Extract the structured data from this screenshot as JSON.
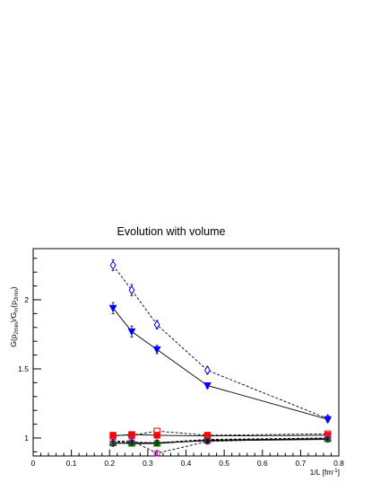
{
  "chart_data": {
    "type": "scatter",
    "title": "Evolution with volume",
    "xlabel": "1/L [fm",
    "xlabel_sup": "-1",
    "xlabel_close": "]",
    "ylabel": "G(p",
    "ylabel_sub1": "2min",
    "ylabel_mid": ")/G",
    "ylabel_sub2": "m",
    "ylabel_mid2": "(p",
    "ylabel_sub3": "2min",
    "ylabel_end": ")",
    "xlim": [
      0,
      0.8
    ],
    "ylim": [
      0.87,
      2.37
    ],
    "xticks": [
      0,
      0.1,
      0.2,
      0.3,
      0.4,
      0.5,
      0.6,
      0.7,
      0.8
    ],
    "xtick_labels": [
      "0",
      "0.1",
      "0.2",
      "0.3",
      "0.4",
      "0.5",
      "0.6",
      "0.7",
      "0.8"
    ],
    "yticks": [
      1,
      1.5,
      2
    ],
    "ytick_labels": [
      "1",
      "1.5",
      "2"
    ],
    "grid": false,
    "series": [
      {
        "marker": "open-diamond",
        "color": "#0000ff",
        "line": "dashed",
        "x": [
          0.209,
          0.258,
          0.324,
          0.456,
          0.771
        ],
        "y": [
          2.25,
          2.07,
          1.82,
          1.49,
          1.14
        ],
        "err": [
          0.04,
          0.04,
          0.03,
          0.025,
          0.02
        ]
      },
      {
        "marker": "filled-triangle-down",
        "color": "#0000ff",
        "line": "solid",
        "x": [
          0.209,
          0.258,
          0.324,
          0.456,
          0.771
        ],
        "y": [
          1.94,
          1.77,
          1.64,
          1.38,
          1.135
        ],
        "err": [
          0.04,
          0.04,
          0.03,
          0.02,
          0.02
        ]
      },
      {
        "marker": "open-square",
        "color": "#ff0000",
        "line": "dashed",
        "x": [
          0.209,
          0.258,
          0.324,
          0.456,
          0.771
        ],
        "y": [
          1.02,
          1.02,
          1.05,
          1.02,
          1.03
        ],
        "err": [
          0.015,
          0.015,
          0.015,
          0.01,
          0.01
        ]
      },
      {
        "marker": "filled-square",
        "color": "#ff0000",
        "line": "solid",
        "x": [
          0.209,
          0.258,
          0.324,
          0.456,
          0.771
        ],
        "y": [
          1.015,
          1.025,
          1.02,
          1.015,
          1.02
        ],
        "err": [
          0.015,
          0.015,
          0.015,
          0.01,
          0.01
        ]
      },
      {
        "marker": "open-triangle-up",
        "color": "#00aa00",
        "line": "dashed",
        "x": [
          0.209,
          0.258,
          0.324,
          0.456,
          0.771
        ],
        "y": [
          0.97,
          0.97,
          0.965,
          0.99,
          1.0
        ],
        "err": [
          0.015,
          0.015,
          0.015,
          0.01,
          0.01
        ]
      },
      {
        "marker": "filled-triangle-up",
        "color": "#00aa00",
        "line": "solid",
        "x": [
          0.209,
          0.258,
          0.324,
          0.456,
          0.771
        ],
        "y": [
          0.965,
          0.96,
          0.96,
          0.985,
          0.995
        ],
        "err": [
          0.015,
          0.015,
          0.015,
          0.01,
          0.01
        ]
      },
      {
        "marker": "open-circle",
        "color": "#ff00ff",
        "line": "dashed",
        "x": [
          0.209,
          0.258,
          0.324,
          0.456,
          0.771
        ],
        "y": [
          0.975,
          0.98,
          0.89,
          0.975,
          1.0
        ],
        "err": [
          0.015,
          0.015,
          0.015,
          0.01,
          0.01
        ]
      },
      {
        "marker": "open-circle",
        "color": "#333333",
        "line": "solid",
        "x": [
          0.209,
          0.258,
          0.324,
          0.456,
          0.771
        ],
        "y": [
          0.96,
          0.965,
          0.965,
          0.98,
          0.99
        ],
        "err": [
          0.015,
          0.015,
          0.015,
          0.01,
          0.01
        ]
      }
    ]
  }
}
